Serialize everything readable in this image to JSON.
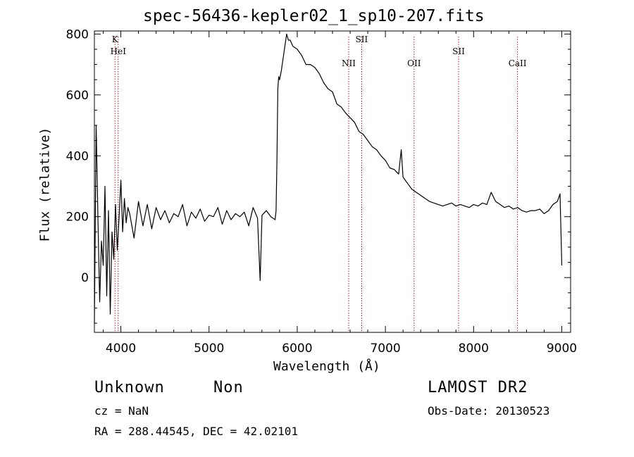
{
  "chart_data": {
    "type": "line",
    "title": "spec-56436-kepler02_1_sp10-207.fits",
    "xlabel": "Wavelength (Å)",
    "ylabel": "Flux (relative)",
    "xlim": [
      3700,
      9100
    ],
    "ylim": [
      -180,
      810
    ],
    "xticks": [
      4000,
      5000,
      6000,
      7000,
      8000,
      9000
    ],
    "yticks": [
      0,
      200,
      400,
      600,
      800
    ],
    "grid": false,
    "line_color": "#000000",
    "marker_color": "#a02020",
    "lines": [
      {
        "name": "K",
        "wavelength": 3934
      },
      {
        "name": "HeI",
        "wavelength": 3970
      },
      {
        "name": "NII",
        "wavelength": 6584
      },
      {
        "name": "SII",
        "wavelength": 6731
      },
      {
        "name": "OII",
        "wavelength": 7325
      },
      {
        "name": "SII",
        "wavelength": 7830
      },
      {
        "name": "CaII",
        "wavelength": 8498
      }
    ],
    "series": [
      {
        "x": [
          3700,
          3720,
          3740,
          3760,
          3780,
          3800,
          3820,
          3840,
          3860,
          3880,
          3900,
          3920,
          3940,
          3960,
          3980,
          4000,
          4020,
          4040,
          4060,
          4080,
          4100,
          4150,
          4200,
          4250,
          4300,
          4350,
          4400,
          4450,
          4500,
          4550,
          4600,
          4650,
          4700,
          4750,
          4800,
          4850,
          4900,
          4950,
          5000,
          5050,
          5100,
          5150,
          5200,
          5250,
          5300,
          5350,
          5400,
          5450,
          5500,
          5550,
          5580,
          5600,
          5650,
          5700,
          5750,
          5760,
          5770,
          5780,
          5790,
          5800,
          5820,
          5840,
          5860,
          5880,
          5900,
          5920,
          5950,
          6000,
          6050,
          6100,
          6150,
          6200,
          6250,
          6300,
          6350,
          6400,
          6450,
          6500,
          6550,
          6600,
          6650,
          6700,
          6750,
          6800,
          6850,
          6900,
          6950,
          7000,
          7050,
          7100,
          7150,
          7180,
          7200,
          7250,
          7300,
          7350,
          7400,
          7450,
          7500,
          7550,
          7600,
          7650,
          7700,
          7750,
          7800,
          7850,
          7900,
          7950,
          8000,
          8050,
          8100,
          8150,
          8200,
          8250,
          8300,
          8350,
          8400,
          8450,
          8500,
          8550,
          8600,
          8650,
          8700,
          8750,
          8800,
          8850,
          8900,
          8950,
          8980,
          9000
        ],
        "values": [
          -150,
          500,
          200,
          -80,
          120,
          40,
          300,
          -60,
          220,
          -120,
          150,
          60,
          240,
          90,
          200,
          320,
          150,
          260,
          180,
          230,
          210,
          130,
          250,
          170,
          240,
          160,
          230,
          190,
          220,
          180,
          210,
          200,
          240,
          170,
          215,
          195,
          225,
          185,
          205,
          200,
          230,
          175,
          220,
          190,
          210,
          200,
          215,
          170,
          230,
          195,
          -10,
          205,
          220,
          200,
          190,
          220,
          380,
          620,
          660,
          650,
          680,
          720,
          760,
          800,
          780,
          780,
          760,
          750,
          730,
          700,
          700,
          690,
          670,
          640,
          620,
          610,
          570,
          560,
          540,
          525,
          510,
          480,
          470,
          450,
          430,
          420,
          400,
          385,
          360,
          355,
          340,
          420,
          330,
          310,
          290,
          280,
          270,
          260,
          250,
          245,
          240,
          235,
          240,
          245,
          235,
          240,
          235,
          230,
          240,
          235,
          245,
          240,
          280,
          250,
          240,
          230,
          235,
          225,
          230,
          220,
          215,
          220,
          220,
          225,
          210,
          220,
          240,
          250,
          275,
          40
        ]
      }
    ]
  },
  "annotations": {
    "object": "Unknown",
    "class": "Non",
    "cz": "cz = NaN",
    "coords": "RA = 288.44545, DEC =  42.02101",
    "survey": "LAMOST DR2",
    "obs_date": "Obs-Date: 20130523"
  }
}
